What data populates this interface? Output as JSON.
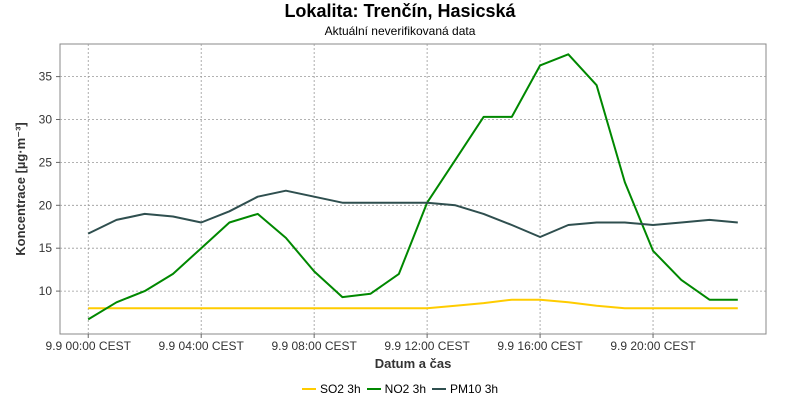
{
  "title": "Lokalita: Trenčín, Hasicská",
  "subtitle": "Aktuální neverifikovaná data",
  "chart_data": {
    "type": "line",
    "xlabel": "Datum a čas",
    "ylabel": "Koncentrace [µg·m⁻³]",
    "x_ticks": [
      {
        "hour": 0,
        "label": "9.9 00:00 CEST"
      },
      {
        "hour": 4,
        "label": "9.9 04:00 CEST"
      },
      {
        "hour": 8,
        "label": "9.9 08:00 CEST"
      },
      {
        "hour": 12,
        "label": "9.9 12:00 CEST"
      },
      {
        "hour": 16,
        "label": "9.9 16:00 CEST"
      },
      {
        "hour": 20,
        "label": "9.9 20:00 CEST"
      }
    ],
    "x_hours": [
      0,
      1,
      2,
      3,
      4,
      5,
      6,
      7,
      8,
      9,
      10,
      11,
      12,
      13,
      14,
      15,
      16,
      17,
      18,
      19,
      20,
      21,
      22,
      23
    ],
    "y_ticks": [
      10,
      15,
      20,
      25,
      30,
      35
    ],
    "ylim": [
      5,
      38.8
    ],
    "xlim": [
      -1,
      24
    ],
    "grid": true,
    "legend_position": "bottom",
    "series": [
      {
        "name": "SO2 3h",
        "color": "#ffcc00",
        "values": [
          8.0,
          8.0,
          8.0,
          8.0,
          8.0,
          8.0,
          8.0,
          8.0,
          8.0,
          8.0,
          8.0,
          8.0,
          8.0,
          8.3,
          8.6,
          9.0,
          9.0,
          8.7,
          8.3,
          8.0,
          8.0,
          8.0,
          8.0,
          8.0
        ]
      },
      {
        "name": "NO2 3h",
        "color": "#008800",
        "values": [
          6.7,
          8.7,
          10.0,
          12.0,
          15.0,
          18.0,
          19.0,
          16.2,
          12.3,
          9.3,
          9.7,
          12.0,
          20.3,
          25.3,
          30.3,
          30.3,
          36.3,
          37.6,
          34.0,
          22.7,
          14.7,
          11.3,
          9.0,
          9.0
        ]
      },
      {
        "name": "PM10 3h",
        "color": "#2f4f4f",
        "values": [
          16.7,
          18.3,
          19.0,
          18.7,
          18.0,
          19.3,
          21.0,
          21.7,
          21.0,
          20.3,
          20.3,
          20.3,
          20.3,
          20.0,
          19.0,
          17.7,
          16.3,
          17.7,
          18.0,
          18.0,
          17.7,
          18.0,
          18.3,
          18.0
        ]
      }
    ]
  }
}
